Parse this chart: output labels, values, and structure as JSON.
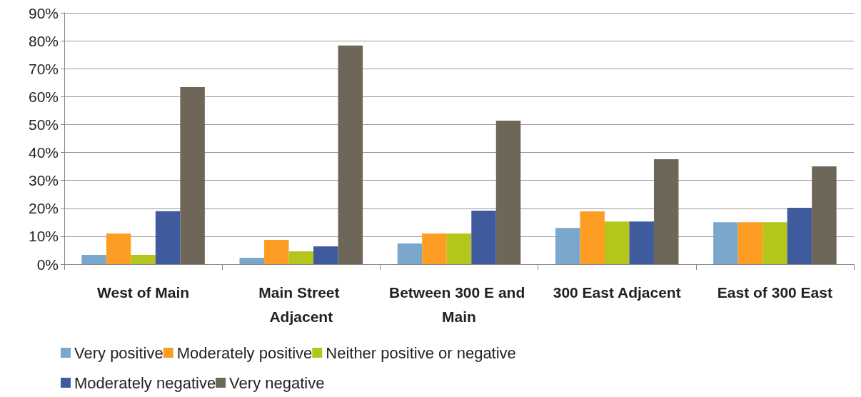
{
  "chart_data": {
    "type": "bar",
    "categories": [
      "West of Main",
      "Main Street Adjacent",
      "Between 300 E and Main",
      "300 East Adjacent",
      "East of 300 East"
    ],
    "series": [
      {
        "name": "Very positive",
        "color": "#7ba7cc",
        "values": [
          3.3,
          2.3,
          7.4,
          13,
          15
        ]
      },
      {
        "name": "Moderately positive",
        "color": "#fd9d24",
        "values": [
          11,
          8.7,
          11,
          18.9,
          15
        ]
      },
      {
        "name": "Neither positive or negative",
        "color": "#b4c61c",
        "values": [
          3.3,
          4.6,
          11,
          15.3,
          15
        ]
      },
      {
        "name": "Moderately negative",
        "color": "#3f5b9e",
        "values": [
          19,
          6.4,
          19.2,
          15.3,
          20.2
        ]
      },
      {
        "name": "Very negative",
        "color": "#6e6658",
        "values": [
          63.4,
          78.3,
          51.4,
          37.6,
          35
        ]
      }
    ],
    "ylim": [
      0,
      90
    ],
    "yticks": [
      {
        "value": 0,
        "label": "0%"
      },
      {
        "value": 10,
        "label": "10%"
      },
      {
        "value": 20,
        "label": "20%"
      },
      {
        "value": 30,
        "label": "30%"
      },
      {
        "value": 40,
        "label": "40%"
      },
      {
        "value": 50,
        "label": "50%"
      },
      {
        "value": 60,
        "label": "60%"
      },
      {
        "value": 70,
        "label": "70%"
      },
      {
        "value": 80,
        "label": "80%"
      },
      {
        "value": 90,
        "label": "90%"
      }
    ],
    "grid": "y",
    "legend": "bottom"
  }
}
